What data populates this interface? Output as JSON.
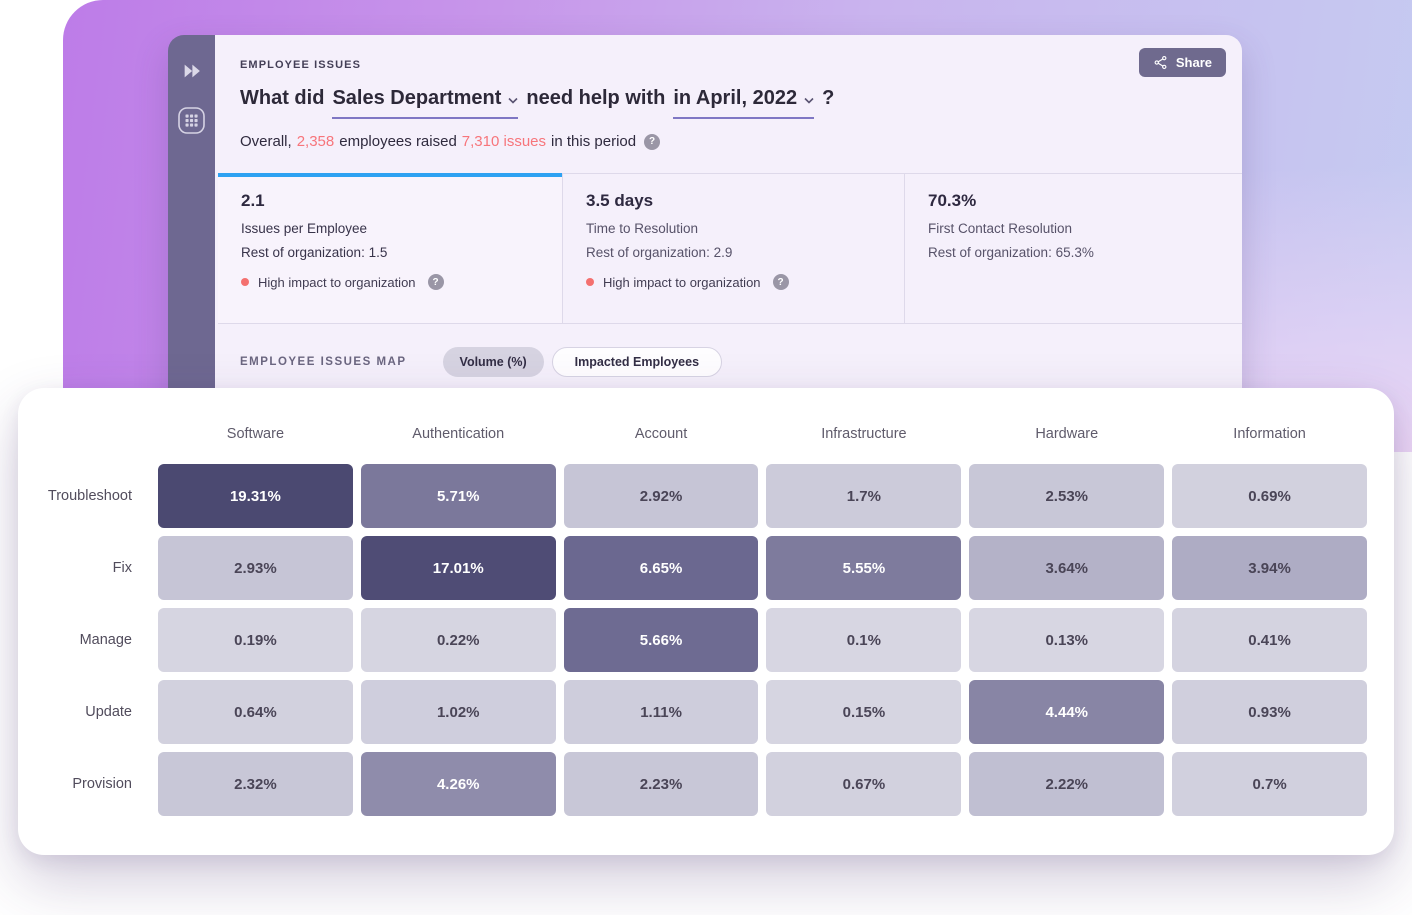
{
  "ui": {
    "help_glyph": "?"
  },
  "toolbar": {
    "share_label": "Share"
  },
  "header": {
    "eyebrow": "EMPLOYEE ISSUES",
    "title": {
      "part1": "What did",
      "department_selector": "Sales Department",
      "part2": "need help with",
      "period_selector": "in April, 2022",
      "part3": "?"
    },
    "subtitle": {
      "part1": "Overall,",
      "employees_count": "2,358",
      "part2": "employees raised",
      "issues_count": "7,310 issues",
      "part3": "in this period"
    }
  },
  "metrics": [
    {
      "value": "2.1",
      "label": "Issues per Employee",
      "comparison": "Rest of organization: 1.5",
      "impact": "High impact to organization",
      "active": true
    },
    {
      "value": "3.5 days",
      "label": "Time to Resolution",
      "comparison": "Rest of organization: 2.9",
      "impact": "High impact to organization",
      "active": false
    },
    {
      "value": "70.3%",
      "label": "First Contact Resolution",
      "comparison": "Rest of organization: 65.3%",
      "impact": null,
      "active": false
    }
  ],
  "map_section": {
    "label": "EMPLOYEE ISSUES MAP",
    "toggles": [
      {
        "label": "Volume (%)",
        "active": true
      },
      {
        "label": "Impacted Employees",
        "active": false
      }
    ]
  },
  "colors": {
    "accent_blue": "#2da1f2",
    "accent_pink": "#f7757b",
    "impact_red": "#f4706f",
    "sidebar_purple": "#6e6891",
    "heatmap_dark": "#4b4971",
    "heatmap_light": "#d7d6e2"
  },
  "chart_data": {
    "type": "heatmap",
    "title": "Employee Issues Map — Volume (%)",
    "columns": [
      "Software",
      "Authentication",
      "Account",
      "Infrastructure",
      "Hardware",
      "Information"
    ],
    "rows": [
      "Troubleshoot",
      "Fix",
      "Manage",
      "Update",
      "Provision"
    ],
    "values": [
      [
        19.31,
        5.71,
        2.92,
        1.7,
        2.53,
        0.69
      ],
      [
        2.93,
        17.01,
        6.65,
        5.55,
        3.64,
        3.94
      ],
      [
        0.19,
        0.22,
        5.66,
        0.1,
        0.13,
        0.41
      ],
      [
        0.64,
        1.02,
        1.11,
        0.15,
        4.44,
        0.93
      ],
      [
        2.32,
        4.26,
        2.23,
        0.67,
        2.22,
        0.7
      ]
    ],
    "labels": [
      [
        "19.31%",
        "5.71%",
        "2.92%",
        "1.7%",
        "2.53%",
        "0.69%"
      ],
      [
        "2.93%",
        "17.01%",
        "6.65%",
        "5.55%",
        "3.64%",
        "3.94%"
      ],
      [
        "0.19%",
        "0.22%",
        "5.66%",
        "0.1%",
        "0.13%",
        "0.41%"
      ],
      [
        "0.64%",
        "1.02%",
        "1.11%",
        "0.15%",
        "4.44%",
        "0.93%"
      ],
      [
        "2.32%",
        "4.26%",
        "2.23%",
        "0.67%",
        "2.22%",
        "0.7%"
      ]
    ],
    "cell_colors": [
      [
        "#4b4971",
        "#7b789b",
        "#c6c5d6",
        "#cccbda",
        "#c8c7d7",
        "#d2d1de"
      ],
      [
        "#c6c5d6",
        "#4f4c75",
        "#6b6890",
        "#7e7b9d",
        "#b4b2c8",
        "#aeacc4"
      ],
      [
        "#d6d5e1",
        "#d6d5e1",
        "#6e6b92",
        "#d7d6e2",
        "#d7d6e2",
        "#d4d3e0"
      ],
      [
        "#d2d1de",
        "#cfcedd",
        "#cecddc",
        "#d6d5e1",
        "#8885a5",
        "#d0cfdd"
      ],
      [
        "#c8c7d7",
        "#8f8cab",
        "#c8c7d7",
        "#d2d1de",
        "#c0bfd2",
        "#d1d0de"
      ]
    ],
    "legend": "none",
    "value_unit": "%"
  }
}
